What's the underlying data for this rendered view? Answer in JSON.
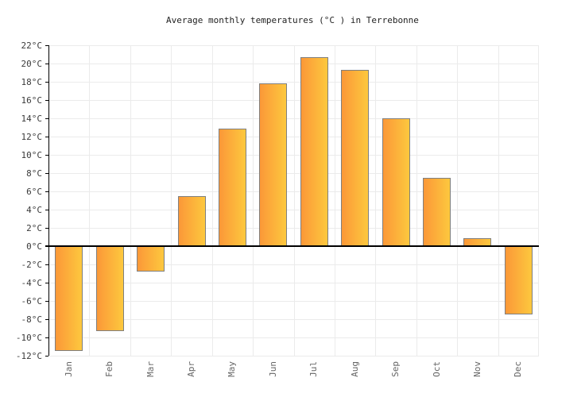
{
  "chart_data": {
    "type": "bar",
    "title": "Average monthly temperatures (°C ) in Terrebonne",
    "categories": [
      "Jan",
      "Feb",
      "Mar",
      "Apr",
      "May",
      "Jun",
      "Jul",
      "Aug",
      "Sep",
      "Oct",
      "Nov",
      "Dec"
    ],
    "values": [
      -11.5,
      -9.3,
      -2.8,
      5.5,
      12.9,
      17.8,
      20.7,
      19.3,
      14.0,
      7.5,
      0.9,
      -7.5
    ],
    "xlabel": "",
    "ylabel": "",
    "y_unit": "°C",
    "ylim": [
      -12,
      22
    ],
    "ytick_step": 2,
    "grid": true,
    "legend": false,
    "zero_baseline": true,
    "colors": {
      "background": "#ffffff",
      "bar_gradient_start": "#fb9838",
      "bar_gradient_end": "#fdc83e",
      "bar_border": "#7f7f7f",
      "grid": "#ebebeb",
      "axis": "#000000",
      "title_text": "#222222",
      "y_tick_text": "#3a3a3a",
      "x_tick_text": "#666666"
    }
  }
}
